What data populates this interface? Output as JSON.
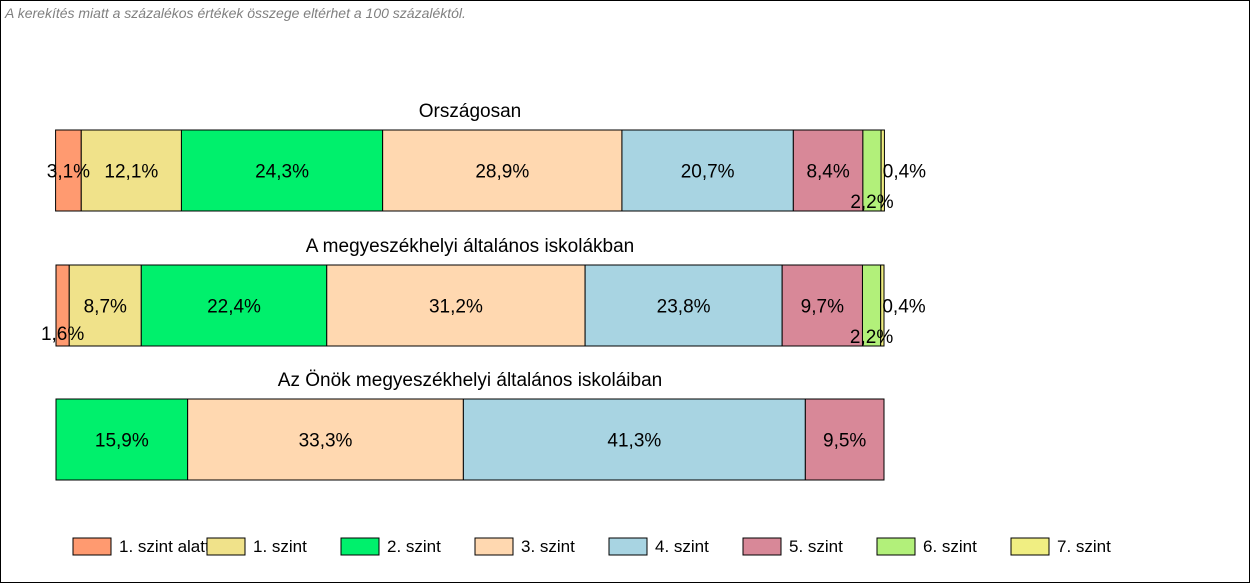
{
  "note": "A kerekítés miatt a  százalékos értékek összege eltérhet a 100 százaléktól.",
  "colors": {
    "1. szint alatti": "#ff9a70",
    "1. szint": "#f0e28a",
    "2. szint": "#00f06c",
    "3. szint": "#ffd8b0",
    "4. szint": "#a8d4e2",
    "5. szint": "#d88898",
    "6. szint": "#b2f07a",
    "7. szint": "#f0ee82"
  },
  "chart_data": {
    "type": "bar",
    "orientation": "horizontal",
    "stacked": true,
    "categories": [
      "1. szint alatti",
      "1. szint",
      "2. szint",
      "3. szint",
      "4. szint",
      "5. szint",
      "6. szint",
      "7. szint"
    ],
    "rows": [
      {
        "title": "Országosan",
        "values": [
          3.1,
          12.1,
          24.3,
          28.9,
          20.7,
          8.4,
          2.2,
          0.4
        ],
        "labels": [
          "3,1%",
          "12,1%",
          "24,3%",
          "28,9%",
          "20,7%",
          "8,4%",
          "2,2%",
          "0,4%"
        ]
      },
      {
        "title": "A megyeszékhelyi általános iskolákban",
        "values": [
          1.6,
          8.7,
          22.4,
          31.2,
          23.8,
          9.7,
          2.2,
          0.4
        ],
        "labels": [
          "1,6%",
          "8,7%",
          "22,4%",
          "31,2%",
          "23,8%",
          "9,7%",
          "2,2%",
          "0,4%"
        ]
      },
      {
        "title": "Az Önök megyeszékhelyi általános iskoláiban",
        "values": [
          0,
          0,
          15.9,
          33.3,
          41.3,
          9.5,
          0,
          0
        ],
        "labels": [
          "",
          "",
          "15,9%",
          "33,3%",
          "41,3%",
          "9,5%",
          "",
          ""
        ]
      }
    ],
    "legend": {
      "position": "bottom",
      "entries": [
        "1. szint alatti",
        "1. szint",
        "2. szint",
        "3. szint",
        "4. szint",
        "5. szint",
        "6. szint",
        "7. szint"
      ]
    }
  }
}
